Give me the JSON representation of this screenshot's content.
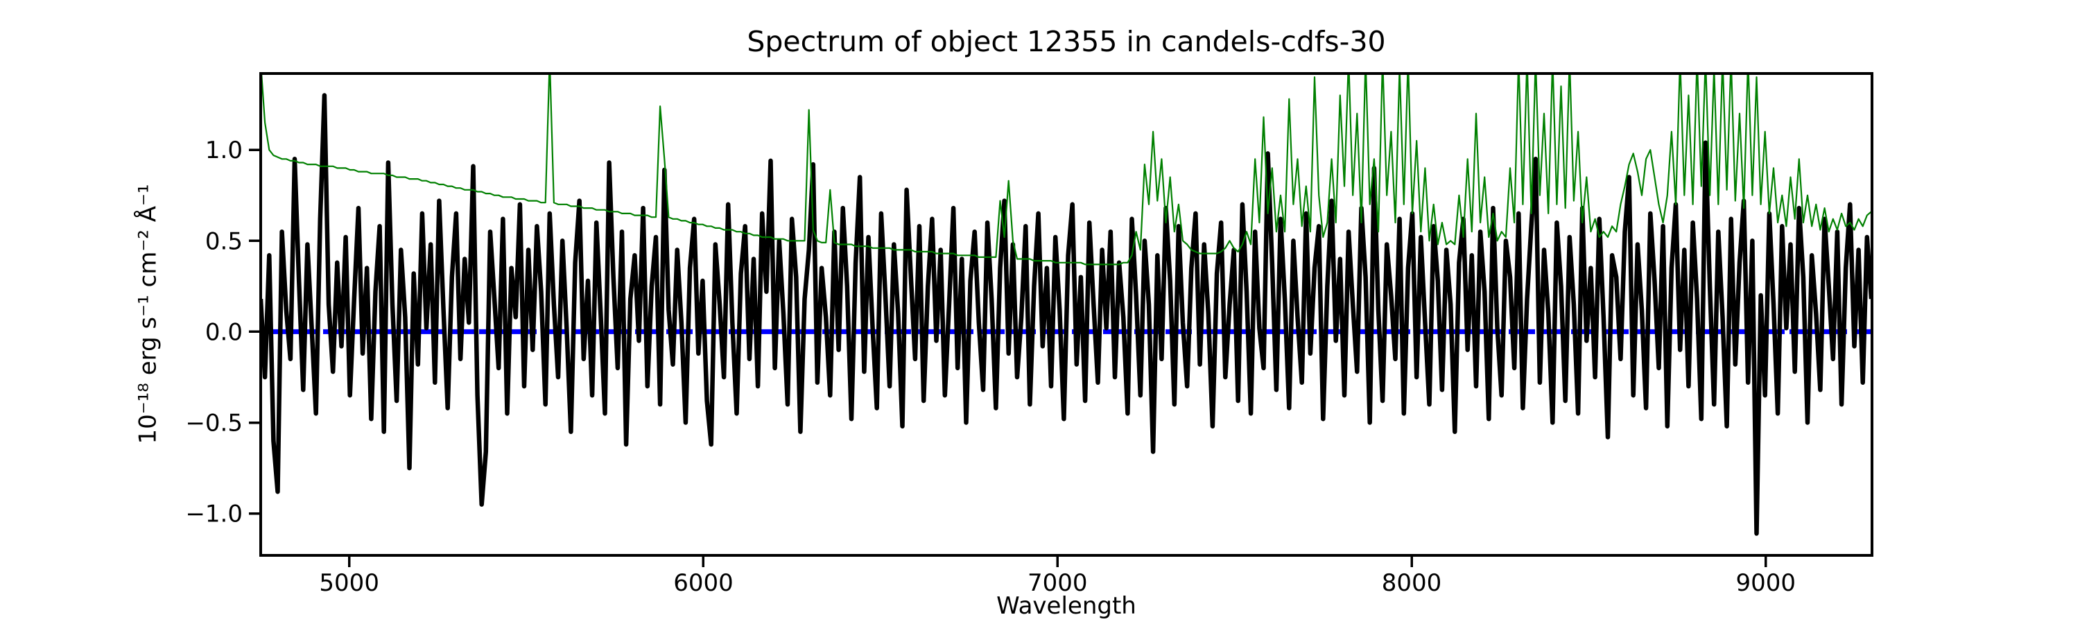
{
  "chart_data": {
    "type": "line",
    "title": "Spectrum of object 12355 in candels-cdfs-30",
    "xlabel": "Wavelength",
    "ylabel": "10⁻¹⁸ erg s⁻¹ cm⁻² Å⁻¹",
    "xlim": [
      4750,
      9300
    ],
    "ylim": [
      -1.23,
      1.42
    ],
    "x_ticks": [
      "5000",
      "6000",
      "7000",
      "8000",
      "9000"
    ],
    "x_tick_values": [
      5000,
      6000,
      7000,
      8000,
      9000
    ],
    "y_ticks": [
      "1.0",
      "0.5",
      "0.0",
      "−0.5",
      "−1.0"
    ],
    "y_tick_values": [
      1.0,
      0.5,
      0.0,
      -0.5,
      -1.0
    ],
    "grid": false,
    "legend": null,
    "x_start": 4750,
    "x_step": 12,
    "series": [
      {
        "name": "object-flux-spectrum",
        "color": "#000000",
        "linewidth": 6.5,
        "values": [
          0.18,
          -0.25,
          0.42,
          -0.6,
          -0.88,
          0.55,
          0.12,
          -0.15,
          0.95,
          0.28,
          -0.32,
          0.48,
          0.02,
          -0.45,
          0.62,
          1.3,
          0.15,
          -0.22,
          0.38,
          -0.08,
          0.52,
          -0.35,
          0.18,
          0.68,
          -0.12,
          0.35,
          -0.48,
          0.22,
          0.58,
          -0.55,
          0.93,
          0.15,
          -0.38,
          0.45,
          0.08,
          -0.75,
          0.32,
          -0.18,
          0.65,
          0.02,
          0.48,
          -0.28,
          0.72,
          0.12,
          -0.42,
          0.3,
          0.65,
          -0.15,
          0.4,
          0.05,
          0.91,
          -0.35,
          -0.95,
          -0.66,
          0.55,
          0.18,
          -0.2,
          0.62,
          -0.45,
          0.35,
          0.08,
          0.7,
          -0.3,
          0.45,
          -0.1,
          0.58,
          0.22,
          -0.4,
          0.65,
          0.15,
          -0.25,
          0.5,
          0.02,
          -0.55,
          0.38,
          0.72,
          -0.15,
          0.28,
          -0.35,
          0.6,
          0.1,
          -0.45,
          0.93,
          0.3,
          -0.2,
          0.55,
          -0.62,
          0.18,
          0.42,
          -0.05,
          0.68,
          -0.3,
          0.25,
          0.52,
          -0.4,
          0.89,
          0.12,
          -0.18,
          0.45,
          0.05,
          -0.5,
          0.35,
          0.62,
          -0.12,
          0.28,
          -0.38,
          -0.62,
          0.48,
          0.15,
          -0.25,
          0.7,
          0.05,
          -0.45,
          0.32,
          0.58,
          -0.15,
          0.4,
          -0.3,
          0.65,
          0.22,
          0.94,
          -0.2,
          0.5,
          0.1,
          -0.4,
          0.62,
          0.3,
          -0.55,
          0.18,
          0.45,
          0.92,
          -0.28,
          0.35,
          0.08,
          -0.35,
          0.55,
          -0.1,
          0.68,
          0.25,
          -0.48,
          0.38,
          0.85,
          -0.22,
          0.52,
          0.02,
          -0.42,
          0.65,
          0.2,
          -0.3,
          0.48,
          0.1,
          -0.52,
          0.78,
          0.3,
          -0.15,
          0.58,
          -0.38,
          0.25,
          0.62,
          -0.05,
          0.45,
          -0.35,
          0.15,
          0.68,
          -0.2,
          0.4,
          -0.5,
          0.28,
          0.55,
          0.05,
          -0.32,
          0.6,
          0.18,
          -0.42,
          0.35,
          0.72,
          -0.12,
          0.48,
          -0.25,
          0.08,
          0.58,
          -0.4,
          0.25,
          0.65,
          -0.08,
          0.35,
          -0.3,
          0.52,
          0.12,
          -0.48,
          0.42,
          0.7,
          -0.18,
          0.3,
          -0.38,
          0.6,
          0.15,
          -0.28,
          0.45,
          0.02,
          0.55,
          -0.25,
          0.38,
          0.08,
          -0.45,
          0.62,
          0.2,
          -0.35,
          0.5,
          0.15,
          -0.66,
          0.42,
          -0.15,
          0.68,
          0.28,
          -0.4,
          0.58,
          0.05,
          -0.3,
          0.35,
          0.65,
          -0.18,
          0.48,
          0.1,
          -0.52,
          0.32,
          0.6,
          -0.25,
          0.15,
          0.45,
          -0.38,
          0.7,
          0.22,
          -0.45,
          0.55,
          0.02,
          -0.2,
          0.98,
          0.38,
          -0.32,
          0.62,
          0.18,
          -0.42,
          0.5,
          0.08,
          -0.28,
          0.65,
          -0.12,
          0.35,
          0.58,
          -0.48,
          0.25,
          0.72,
          -0.05,
          0.4,
          -0.35,
          0.55,
          0.15,
          -0.22,
          0.68,
          0.3,
          -0.5,
          0.9,
          0.12,
          -0.38,
          0.48,
          0.2,
          -0.15,
          0.62,
          -0.45,
          0.35,
          0.65,
          -0.25,
          0.52,
          0.05,
          -0.4,
          0.58,
          0.28,
          -0.32,
          0.45,
          0.15,
          -0.55,
          0.38,
          0.62,
          -0.1,
          0.42,
          -0.3,
          0.55,
          0.22,
          -0.48,
          0.68,
          0.02,
          -0.35,
          0.5,
          0.3,
          -0.2,
          0.65,
          -0.42,
          0.18,
          0.58,
          0.95,
          -0.28,
          0.45,
          0.1,
          -0.5,
          0.6,
          0.25,
          -0.38,
          0.52,
          0.15,
          -0.45,
          0.68,
          -0.05,
          0.35,
          -0.25,
          0.62,
          0.08,
          -0.58,
          0.42,
          0.3,
          -0.15,
          0.55,
          0.85,
          -0.35,
          0.48,
          0.12,
          -0.42,
          0.65,
          0.28,
          -0.2,
          0.58,
          -0.52,
          0.35,
          0.7,
          -0.1,
          0.45,
          -0.3,
          0.6,
          0.18,
          -0.48,
          1.04,
          0.25,
          -0.4,
          0.55,
          0.08,
          -0.52,
          0.62,
          -0.18,
          0.38,
          0.72,
          -0.28,
          0.5,
          -1.11,
          0.2,
          -0.35,
          0.65,
          0.15,
          -0.45,
          0.58,
          0.02,
          0.48,
          -0.22,
          0.68,
          0.3,
          -0.5,
          0.42,
          0.1,
          -0.32,
          0.62,
          0.25,
          -0.15,
          0.55,
          -0.4,
          0.35,
          0.7,
          -0.08,
          0.45,
          -0.28,
          0.52,
          0.18
        ]
      },
      {
        "name": "noise-sky-spectrum",
        "color": "#008000",
        "linewidth": 2.2,
        "values": [
          1.48,
          1.15,
          1.0,
          0.97,
          0.96,
          0.95,
          0.95,
          0.94,
          0.94,
          0.93,
          0.93,
          0.92,
          0.92,
          0.92,
          0.91,
          0.91,
          0.91,
          0.91,
          0.9,
          0.9,
          0.9,
          0.89,
          0.89,
          0.88,
          0.88,
          0.88,
          0.87,
          0.87,
          0.87,
          0.87,
          0.86,
          0.86,
          0.85,
          0.85,
          0.85,
          0.84,
          0.84,
          0.84,
          0.83,
          0.83,
          0.82,
          0.82,
          0.81,
          0.81,
          0.8,
          0.8,
          0.79,
          0.79,
          0.78,
          0.78,
          0.78,
          0.77,
          0.77,
          0.76,
          0.76,
          0.75,
          0.75,
          0.74,
          0.74,
          0.74,
          0.73,
          0.73,
          0.73,
          0.72,
          0.72,
          0.72,
          0.71,
          0.71,
          1.5,
          0.71,
          0.7,
          0.7,
          0.7,
          0.69,
          0.69,
          0.69,
          0.68,
          0.68,
          0.68,
          0.67,
          0.67,
          0.67,
          0.66,
          0.66,
          0.66,
          0.65,
          0.65,
          0.65,
          0.64,
          0.64,
          0.64,
          0.64,
          0.63,
          0.63,
          1.24,
          0.95,
          0.63,
          0.62,
          0.62,
          0.61,
          0.61,
          0.6,
          0.6,
          0.59,
          0.59,
          0.58,
          0.58,
          0.57,
          0.57,
          0.56,
          0.56,
          0.56,
          0.55,
          0.55,
          0.54,
          0.54,
          0.53,
          0.53,
          0.52,
          0.52,
          0.52,
          0.51,
          0.51,
          0.51,
          0.5,
          0.5,
          0.5,
          0.5,
          0.5,
          1.22,
          0.56,
          0.5,
          0.49,
          0.49,
          0.78,
          0.49,
          0.48,
          0.48,
          0.48,
          0.48,
          0.47,
          0.47,
          0.47,
          0.47,
          0.46,
          0.46,
          0.46,
          0.46,
          0.46,
          0.45,
          0.45,
          0.45,
          0.45,
          0.45,
          0.44,
          0.44,
          0.44,
          0.44,
          0.44,
          0.43,
          0.43,
          0.43,
          0.43,
          0.43,
          0.42,
          0.42,
          0.42,
          0.42,
          0.42,
          0.41,
          0.41,
          0.41,
          0.41,
          0.41,
          0.72,
          0.52,
          0.83,
          0.5,
          0.4,
          0.4,
          0.4,
          0.4,
          0.39,
          0.39,
          0.39,
          0.39,
          0.39,
          0.38,
          0.38,
          0.38,
          0.38,
          0.38,
          0.38,
          0.38,
          0.37,
          0.37,
          0.37,
          0.37,
          0.37,
          0.37,
          0.37,
          0.37,
          0.37,
          0.38,
          0.38,
          0.42,
          0.55,
          0.45,
          0.92,
          0.7,
          1.1,
          0.72,
          0.95,
          0.6,
          0.85,
          0.55,
          0.7,
          0.5,
          0.48,
          0.45,
          0.44,
          0.43,
          0.43,
          0.43,
          0.43,
          0.43,
          0.44,
          0.46,
          0.5,
          0.46,
          0.44,
          0.48,
          0.55,
          0.48,
          0.95,
          0.6,
          1.18,
          0.65,
          0.9,
          0.55,
          0.75,
          0.55,
          1.28,
          0.7,
          0.95,
          0.58,
          0.8,
          0.55,
          1.4,
          0.75,
          0.52,
          0.6,
          0.95,
          0.6,
          1.3,
          0.8,
          1.5,
          0.75,
          1.2,
          0.6,
          1.5,
          0.7,
          0.95,
          0.55,
          1.5,
          0.75,
          1.1,
          0.6,
          1.45,
          0.7,
          1.5,
          0.65,
          1.05,
          0.55,
          0.9,
          0.5,
          0.7,
          0.48,
          0.6,
          0.48,
          0.5,
          0.48,
          0.75,
          0.52,
          0.95,
          0.55,
          1.2,
          0.6,
          0.85,
          0.52,
          0.65,
          0.5,
          0.55,
          0.52,
          0.9,
          0.6,
          1.5,
          0.7,
          1.5,
          0.65,
          1.5,
          0.75,
          1.2,
          0.65,
          1.5,
          0.7,
          1.35,
          0.68,
          1.5,
          0.72,
          1.1,
          0.6,
          0.85,
          0.55,
          0.62,
          0.52,
          0.55,
          0.52,
          0.58,
          0.55,
          0.7,
          0.8,
          0.92,
          0.98,
          0.88,
          0.75,
          0.95,
          1.0,
          0.85,
          0.7,
          0.6,
          0.75,
          1.1,
          0.7,
          1.5,
          0.75,
          1.3,
          0.7,
          1.5,
          0.8,
          1.5,
          0.75,
          1.45,
          0.7,
          1.5,
          0.78,
          1.5,
          0.72,
          1.2,
          0.68,
          1.5,
          0.75,
          1.4,
          0.7,
          1.1,
          0.65,
          0.9,
          0.6,
          0.75,
          0.58,
          0.85,
          0.62,
          0.95,
          0.6,
          0.75,
          0.58,
          0.7,
          0.56,
          0.68,
          0.55,
          0.62,
          0.56,
          0.65,
          0.58,
          0.6,
          0.56,
          0.62,
          0.58,
          0.64,
          0.66
        ]
      },
      {
        "name": "zero-flux-line",
        "color": "#0000ff",
        "linewidth": 7,
        "linestyle": "dashed",
        "y": 0.0
      }
    ]
  }
}
